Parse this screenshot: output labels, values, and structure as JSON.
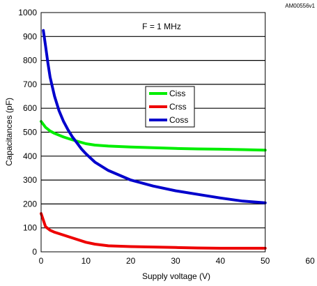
{
  "chart_data": {
    "type": "line",
    "id_label": "AM00556v1",
    "annotation": "F = 1 MHz",
    "xlabel": "Supply voltage (V)",
    "ylabel": "Capacitances (pF)",
    "xlim": [
      0,
      60
    ],
    "ylim": [
      0,
      1000
    ],
    "xticks": [
      0,
      10,
      20,
      30,
      40,
      50,
      60
    ],
    "yticks": [
      0,
      100,
      200,
      300,
      400,
      500,
      600,
      700,
      800,
      900,
      1000
    ],
    "grid": "horizontal",
    "legend_position": "center",
    "series": [
      {
        "name": "Ciss",
        "color": "#00ee00",
        "x": [
          0,
          1,
          2,
          3,
          5,
          7,
          10,
          12,
          15,
          20,
          25,
          30,
          35,
          40,
          45,
          50
        ],
        "y": [
          545,
          520,
          505,
          495,
          480,
          468,
          452,
          446,
          442,
          438,
          435,
          432,
          430,
          429,
          427,
          425
        ]
      },
      {
        "name": "Crss",
        "color": "#ee0000",
        "x": [
          0,
          1,
          2,
          3,
          5,
          7,
          10,
          12,
          15,
          20,
          25,
          30,
          35,
          40,
          45,
          50
        ],
        "y": [
          160,
          105,
          90,
          82,
          70,
          58,
          40,
          32,
          25,
          22,
          20,
          18,
          16,
          15,
          15,
          15
        ]
      },
      {
        "name": "Coss",
        "color": "#0000cc",
        "x": [
          0.5,
          1,
          1.5,
          2,
          3,
          4,
          5,
          6,
          7,
          8,
          9,
          10,
          12,
          15,
          20,
          25,
          30,
          35,
          40,
          45,
          50
        ],
        "y": [
          925,
          860,
          790,
          730,
          650,
          590,
          545,
          510,
          480,
          455,
          430,
          410,
          375,
          340,
          300,
          275,
          255,
          240,
          225,
          212,
          205
        ]
      }
    ]
  }
}
